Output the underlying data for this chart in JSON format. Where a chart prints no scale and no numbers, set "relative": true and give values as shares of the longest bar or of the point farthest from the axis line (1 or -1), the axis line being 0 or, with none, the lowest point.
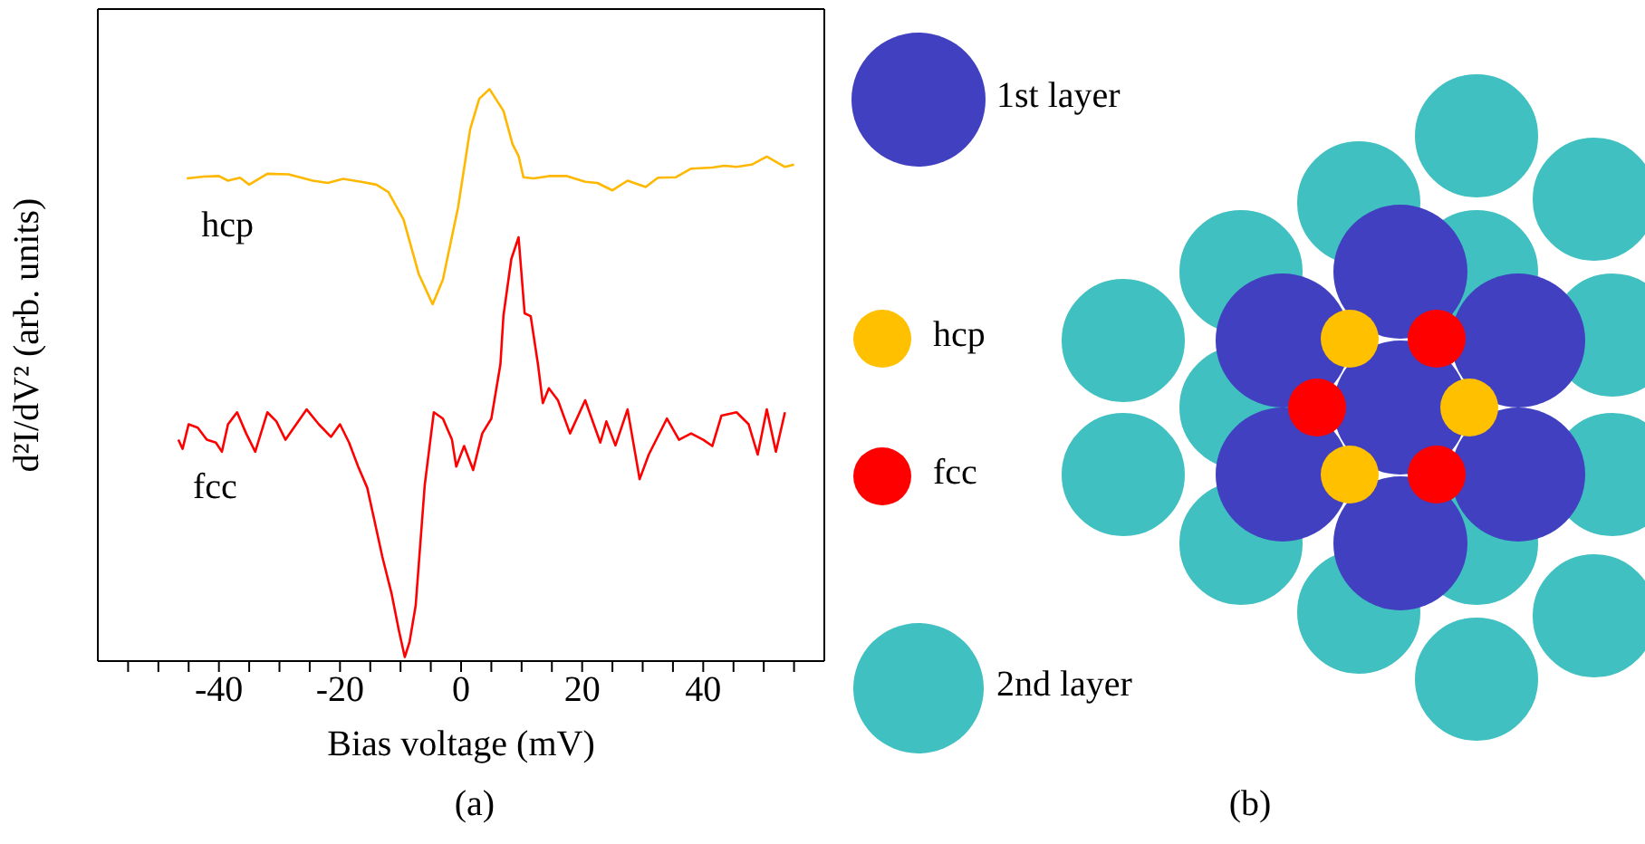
{
  "chart_data": [
    {
      "type": "line",
      "relative": true,
      "xlabel": "Bias voltage (mV)",
      "ylabel": "d²I/dV² (arb. units)",
      "xlim": [
        -60,
        60
      ],
      "xticks": [
        {
          "value": -55,
          "label": null
        },
        {
          "value": -50,
          "label": null
        },
        {
          "value": -45,
          "label": null
        },
        -40,
        {
          "value": -35,
          "label": null
        },
        {
          "value": -30,
          "label": null
        },
        {
          "value": -25,
          "label": null
        },
        -20,
        {
          "value": -15,
          "label": null
        },
        {
          "value": -10,
          "label": null
        },
        {
          "value": -5,
          "label": null
        },
        0,
        {
          "value": 5,
          "label": null
        },
        {
          "value": 10,
          "label": null
        },
        {
          "value": 15,
          "label": null
        },
        20,
        {
          "value": 25,
          "label": null
        },
        {
          "value": 30,
          "label": null
        },
        {
          "value": 35,
          "label": null
        },
        40,
        {
          "value": 45,
          "label": null
        },
        {
          "value": 50,
          "label": null
        },
        {
          "value": 55,
          "label": null
        }
      ],
      "marker": "none",
      "line_style": "solid",
      "annotations": [
        "(a)"
      ],
      "series": [
        {
          "name": "hcp",
          "color": "#ffb800",
          "x": [
            -45.3,
            -42.5,
            -40,
            -38.5,
            -36.5,
            -35,
            -32,
            -28.5,
            -24.5,
            -22,
            -19.5,
            -16.5,
            -14,
            -12,
            -9.5,
            -7,
            -4.7,
            -3,
            -0.5,
            1.5,
            3,
            4.7,
            7,
            8.5,
            9.5,
            10.3,
            12,
            14.5,
            17.5,
            20.5,
            22.5,
            25,
            27.5,
            30.5,
            32.5,
            35.5,
            38,
            41.5,
            43.5,
            45.5,
            48,
            50.5,
            53.5,
            55
          ],
          "values": [
            0.844,
            0.847,
            0.848,
            0.84,
            0.845,
            0.833,
            0.852,
            0.851,
            0.84,
            0.836,
            0.843,
            0.838,
            0.833,
            0.82,
            0.772,
            0.677,
            0.624,
            0.667,
            0.793,
            0.93,
            0.983,
            1,
            0.962,
            0.904,
            0.883,
            0.846,
            0.844,
            0.848,
            0.848,
            0.838,
            0.836,
            0.823,
            0.84,
            0.829,
            0.845,
            0.846,
            0.861,
            0.863,
            0.866,
            0.864,
            0.868,
            0.882,
            0.864,
            0.868
          ]
        },
        {
          "name": "fcc",
          "color": "#ff0000",
          "x": [
            -46.7,
            -46,
            -45,
            -43.5,
            -42,
            -40.5,
            -39.5,
            -38.5,
            -37,
            -35.5,
            -34,
            -32,
            -30.5,
            -29,
            -25.5,
            -23.5,
            -21.5,
            -20,
            -18.5,
            -17,
            -15.5,
            -14.5,
            -13,
            -11.5,
            -10.3,
            -9.3,
            -8.5,
            -7.5,
            -6,
            -4.5,
            -3,
            -1.5,
            -0.8,
            0.5,
            2,
            3.5,
            5,
            6.5,
            7,
            8.3,
            9.5,
            10.5,
            11.5,
            12.7,
            13.5,
            14.5,
            16,
            18,
            20.5,
            23,
            24,
            25.5,
            27.5,
            29.5,
            31,
            34,
            36,
            38,
            40,
            41.5,
            43,
            45.5,
            47.5,
            49,
            50.5,
            52,
            53.5
          ],
          "values": [
            0.387,
            0.371,
            0.414,
            0.408,
            0.387,
            0.382,
            0.366,
            0.414,
            0.435,
            0.398,
            0.366,
            0.435,
            0.419,
            0.387,
            0.44,
            0.414,
            0.392,
            0.414,
            0.382,
            0.34,
            0.303,
            0.255,
            0.182,
            0.119,
            0.055,
            0.007,
            0.034,
            0.097,
            0.308,
            0.435,
            0.424,
            0.387,
            0.34,
            0.376,
            0.334,
            0.398,
            0.424,
            0.519,
            0.604,
            0.703,
            0.741,
            0.608,
            0.603,
            0.519,
            0.451,
            0.477,
            0.456,
            0.398,
            0.456,
            0.382,
            0.419,
            0.377,
            0.44,
            0.318,
            0.361,
            0.424,
            0.387,
            0.398,
            0.387,
            0.376,
            0.429,
            0.435,
            0.414,
            0.361,
            0.44,
            0.366,
            0.435
          ]
        }
      ]
    },
    {
      "type": "other",
      "annotations": [
        "1st layer",
        "hcp",
        "fcc",
        "2nd layer",
        "(b)"
      ],
      "colors": [
        "#4040c0",
        "#ffc000",
        "#ff0000",
        "#40c0c0"
      ]
    }
  ]
}
